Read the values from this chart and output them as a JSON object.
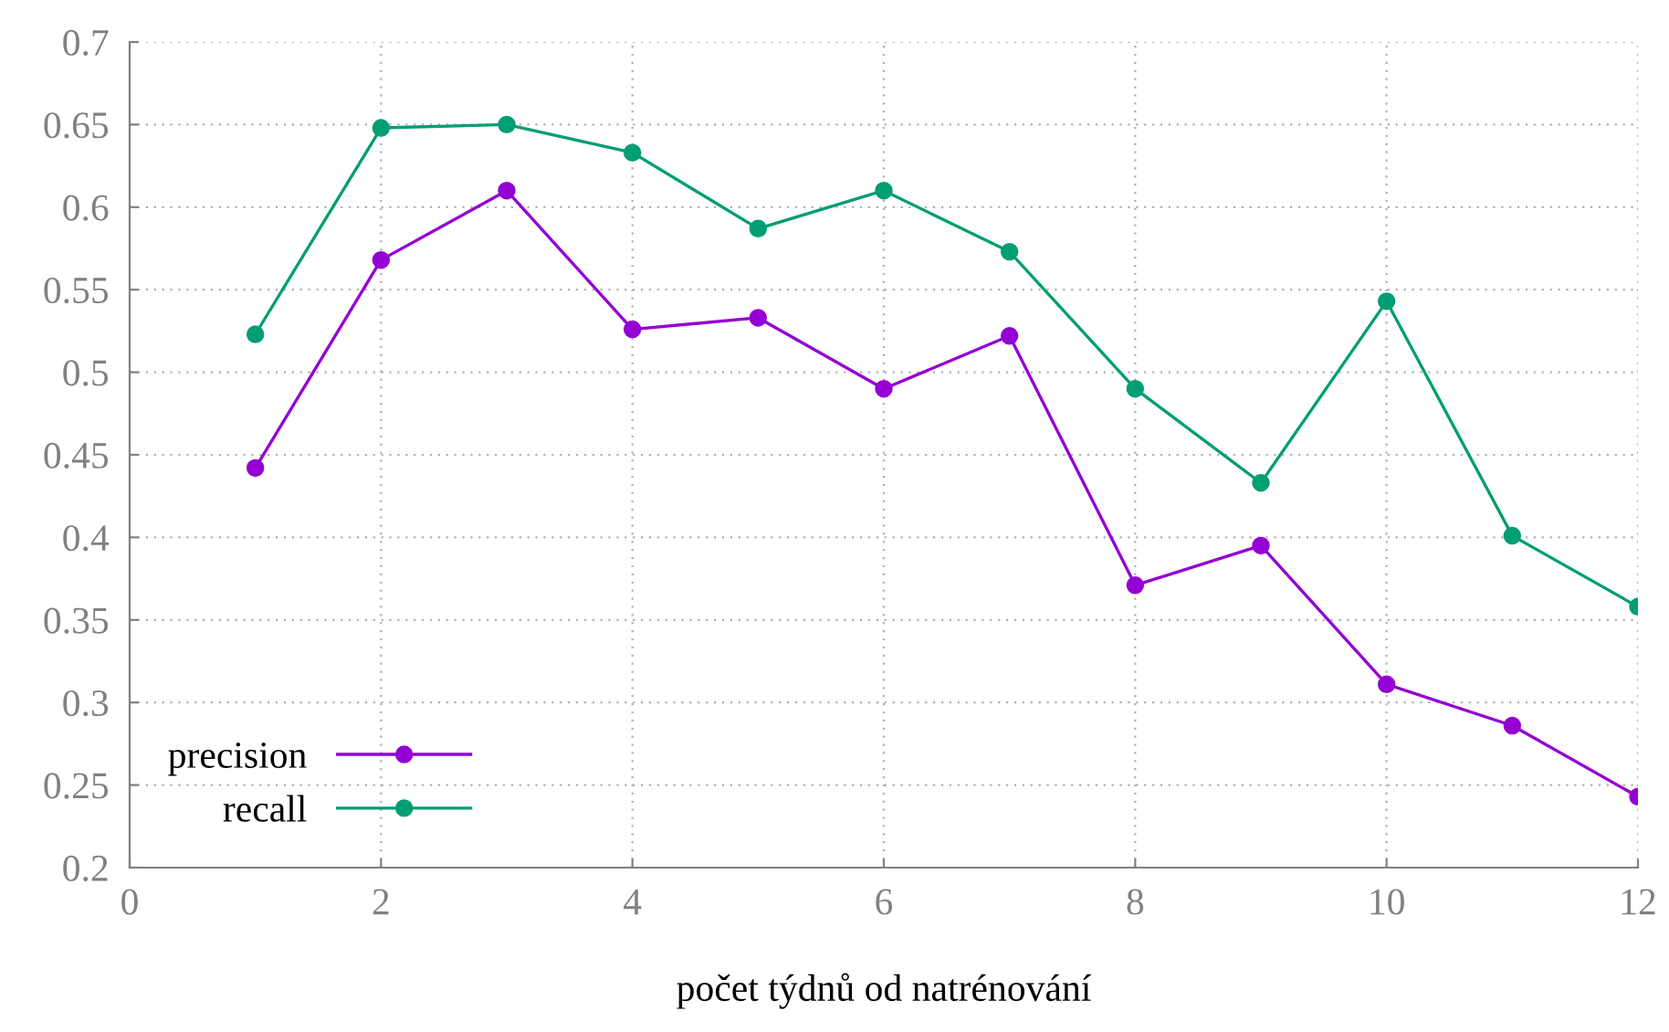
{
  "chart_data": {
    "type": "line",
    "xlabel": "počet týdnů od natrénování",
    "x": [
      1,
      2,
      3,
      4,
      5,
      6,
      7,
      8,
      9,
      10,
      11,
      12
    ],
    "series": [
      {
        "name": "precision",
        "color": "#9400d3",
        "values": [
          0.442,
          0.568,
          0.61,
          0.526,
          0.533,
          0.49,
          0.522,
          0.371,
          0.395,
          0.311,
          0.286,
          0.243
        ]
      },
      {
        "name": "recall",
        "color": "#009e73",
        "values": [
          0.523,
          0.648,
          0.65,
          0.633,
          0.587,
          0.61,
          0.573,
          0.49,
          0.433,
          0.543,
          0.401,
          0.358
        ]
      }
    ],
    "xlim": [
      0,
      12
    ],
    "xticks": [
      0,
      2,
      4,
      6,
      8,
      10,
      12
    ],
    "ylim": [
      0.2,
      0.7
    ],
    "yticks": [
      0.2,
      0.25,
      0.3,
      0.35,
      0.4,
      0.45,
      0.5,
      0.55,
      0.6,
      0.65,
      0.7
    ],
    "grid": true,
    "legend": "bottom left",
    "marker": "circle",
    "line_style": "solid"
  }
}
